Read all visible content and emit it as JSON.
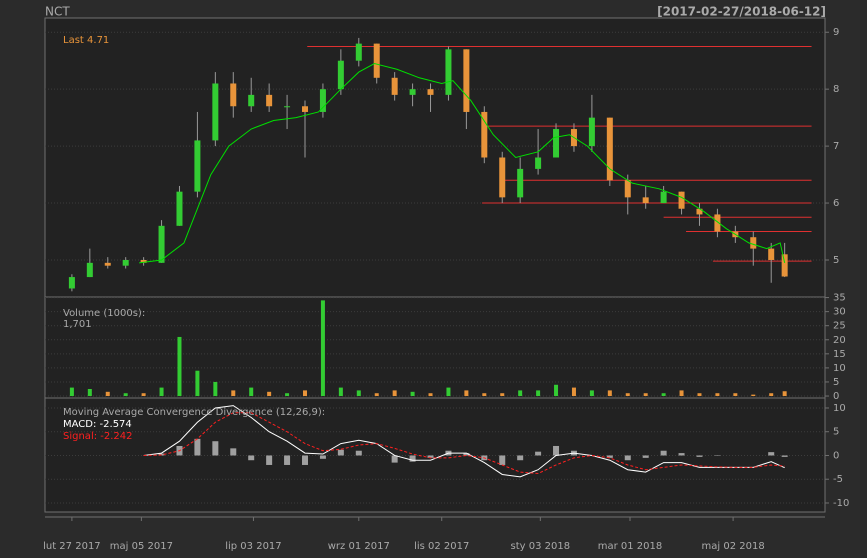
{
  "chart_data": [
    {
      "type": "candlestick",
      "title": "NCT",
      "subtitle": "[2017-02-27/2018-06-12]",
      "legend": "Last",
      "up_color": "#33cc33",
      "down_color": "#e8943a",
      "ma_color": "#00e000",
      "level_color": "#e03030",
      "xlim": [
        -12,
        336
      ],
      "ylim": [
        4.35,
        9.25
      ],
      "yticks": [
        5,
        6,
        7,
        8,
        9
      ],
      "grid": true,
      "x": [
        0,
        8,
        16,
        24,
        32,
        40,
        48,
        56,
        64,
        72,
        80,
        88,
        96,
        104,
        112,
        120,
        128,
        136,
        144,
        152,
        160,
        168,
        176,
        184,
        192,
        200,
        208,
        216,
        224,
        232,
        240,
        248,
        256,
        264,
        272,
        280,
        288,
        296,
        304,
        312,
        318
      ],
      "open": [
        4.5,
        4.7,
        4.95,
        4.9,
        5.0,
        4.95,
        5.6,
        6.2,
        7.1,
        8.1,
        7.7,
        7.9,
        7.7,
        7.7,
        7.6,
        8.0,
        8.5,
        8.8,
        8.2,
        7.9,
        8.0,
        7.9,
        8.7,
        7.6,
        6.8,
        6.1,
        6.6,
        6.8,
        7.3,
        7.0,
        7.5,
        6.4,
        6.1,
        6.0,
        6.2,
        5.9,
        5.8,
        5.5,
        5.4,
        5.2,
        5.1
      ],
      "high": [
        4.75,
        5.2,
        5.05,
        5.05,
        5.05,
        5.7,
        6.3,
        7.6,
        8.3,
        8.3,
        8.2,
        8.1,
        7.9,
        7.8,
        8.1,
        8.7,
        8.9,
        8.8,
        8.3,
        8.1,
        8.1,
        8.75,
        8.7,
        7.7,
        6.9,
        6.8,
        7.3,
        7.4,
        7.4,
        7.9,
        7.5,
        6.5,
        6.3,
        6.3,
        6.2,
        6.0,
        5.9,
        5.6,
        5.5,
        5.3,
        5.3
      ],
      "low": [
        4.45,
        4.7,
        4.85,
        4.85,
        4.9,
        4.95,
        5.6,
        6.1,
        7.0,
        7.5,
        7.6,
        7.6,
        7.3,
        6.8,
        7.5,
        7.9,
        8.4,
        8.1,
        7.8,
        7.7,
        7.6,
        7.8,
        7.3,
        6.7,
        6.0,
        6.0,
        6.5,
        6.8,
        6.9,
        6.9,
        6.3,
        5.8,
        5.9,
        6.0,
        5.8,
        5.6,
        5.4,
        5.3,
        4.9,
        4.6,
        4.7
      ],
      "close": [
        4.7,
        4.95,
        4.9,
        5.0,
        4.95,
        5.6,
        6.2,
        7.1,
        8.1,
        7.7,
        7.9,
        7.7,
        7.7,
        7.6,
        8.0,
        8.5,
        8.8,
        8.2,
        7.9,
        8.0,
        7.9,
        8.7,
        7.6,
        6.8,
        6.1,
        6.6,
        6.8,
        7.3,
        7.0,
        7.5,
        6.4,
        6.1,
        6.0,
        6.2,
        5.9,
        5.8,
        5.5,
        5.4,
        5.2,
        5.0,
        4.71
      ],
      "ma_x": [
        30,
        40,
        50,
        56,
        62,
        70,
        80,
        90,
        100,
        110,
        120,
        128,
        135,
        145,
        155,
        165,
        170,
        178,
        188,
        198,
        208,
        215,
        222,
        230,
        240,
        250,
        262,
        272,
        282,
        292,
        302,
        310,
        316,
        318
      ],
      "ma": [
        4.95,
        5.0,
        5.3,
        5.9,
        6.5,
        7.0,
        7.3,
        7.45,
        7.5,
        7.6,
        8.0,
        8.3,
        8.45,
        8.35,
        8.2,
        8.1,
        8.15,
        7.8,
        7.2,
        6.8,
        6.9,
        7.15,
        7.2,
        7.0,
        6.6,
        6.35,
        6.25,
        6.1,
        5.85,
        5.55,
        5.3,
        5.2,
        5.3,
        4.95
      ],
      "levels": [
        {
          "x": [
            105,
            330
          ],
          "y": 8.75
        },
        {
          "x": [
            183,
            330
          ],
          "y": 7.35
        },
        {
          "x": [
            191,
            330
          ],
          "y": 6.4
        },
        {
          "x": [
            183,
            330
          ],
          "y": 6.0
        },
        {
          "x": [
            264,
            330
          ],
          "y": 5.75
        },
        {
          "x": [
            274,
            330
          ],
          "y": 5.5
        },
        {
          "x": [
            286,
            330
          ],
          "y": 4.98
        }
      ]
    },
    {
      "type": "bar",
      "title": "Volume (1000s):",
      "last": {
        "value": 1.701,
        "label": "1,701"
      },
      "xlim": [
        -12,
        336
      ],
      "ylim": [
        -0.7,
        35.2
      ],
      "yticks": [
        0,
        5,
        10,
        15,
        20,
        25,
        30,
        35
      ],
      "grid": true,
      "x": [
        0,
        8,
        16,
        24,
        32,
        40,
        48,
        56,
        64,
        72,
        80,
        88,
        96,
        104,
        112,
        120,
        128,
        136,
        144,
        152,
        160,
        168,
        176,
        184,
        192,
        200,
        208,
        216,
        224,
        232,
        240,
        248,
        256,
        264,
        272,
        280,
        288,
        296,
        304,
        312,
        318
      ],
      "values": [
        3,
        2.5,
        1.5,
        1,
        1,
        3,
        21,
        9,
        5,
        2,
        3,
        1.5,
        1,
        2,
        34,
        3,
        2,
        1,
        2,
        1.5,
        1,
        3,
        2,
        1,
        1,
        2,
        2,
        4,
        3,
        2,
        2,
        1,
        1,
        1,
        2,
        1,
        1,
        1,
        0.5,
        1,
        1.701
      ]
    },
    {
      "type": "line",
      "title": "Moving Average Convergence Divergence (12,26,9):",
      "xlim": [
        -12,
        336
      ],
      "ylim": [
        -11.9,
        12.1
      ],
      "yticks": [
        -10,
        -5,
        0,
        5,
        10
      ],
      "grid": true,
      "xticks": [
        {
          "value": 0,
          "label": "lut 27 2017"
        },
        {
          "value": 31,
          "label": "maj 05 2017"
        },
        {
          "value": 81,
          "label": "lip 03 2017"
        },
        {
          "value": 128,
          "label": "wrz 01 2017"
        },
        {
          "value": 165,
          "label": "lis 02 2017"
        },
        {
          "value": 209,
          "label": "sty 03 2018"
        },
        {
          "value": 249,
          "label": "mar 01 2018"
        },
        {
          "value": 295,
          "label": "maj 02 2018"
        }
      ],
      "x": [
        32,
        40,
        48,
        56,
        64,
        72,
        80,
        88,
        96,
        104,
        112,
        120,
        128,
        136,
        144,
        152,
        160,
        168,
        176,
        184,
        192,
        200,
        208,
        216,
        224,
        232,
        240,
        248,
        256,
        264,
        272,
        280,
        288,
        296,
        304,
        312,
        318
      ],
      "series": [
        {
          "name": "MACD:",
          "color": "#ffffff",
          "values": [
            0,
            0.5,
            3,
            7,
            10,
            10.5,
            8,
            5,
            3,
            0.5,
            0.3,
            2.5,
            3.2,
            2.5,
            0,
            -1,
            -1,
            0.5,
            0.5,
            -1.5,
            -4,
            -4.5,
            -3,
            0,
            0.5,
            0,
            -1,
            -3,
            -3.5,
            -1.5,
            -1.5,
            -2.5,
            -2.5,
            -2.5,
            -2.5,
            -1.3,
            -2.574
          ]
        },
        {
          "name": "Signal:",
          "color": "#ff2020",
          "values": [
            0,
            0.1,
            1,
            3.5,
            7,
            9,
            9,
            7,
            5,
            2.5,
            1,
            1.3,
            2.2,
            2.5,
            1.5,
            0.3,
            -0.5,
            -0.5,
            0,
            -0.5,
            -2,
            -3.5,
            -3.8,
            -2,
            -0.5,
            0,
            -0.5,
            -2,
            -3,
            -2.5,
            -2,
            -2.2,
            -2.4,
            -2.5,
            -2.5,
            -2,
            -2.242
          ]
        },
        {
          "type": "bar",
          "color": "#a0a0a0",
          "values": [
            0,
            0.4,
            2,
            3.5,
            3,
            1.5,
            -1,
            -2,
            -2,
            -2,
            -0.7,
            1.2,
            1,
            0,
            -1.5,
            -1.3,
            -0.5,
            1,
            0.5,
            -1,
            -2,
            -1,
            0.8,
            2,
            1,
            0,
            -0.5,
            -1,
            -0.5,
            1,
            0.5,
            -0.3,
            -0.1,
            0,
            0,
            0.7,
            -0.3
          ]
        }
      ]
    }
  ]
}
